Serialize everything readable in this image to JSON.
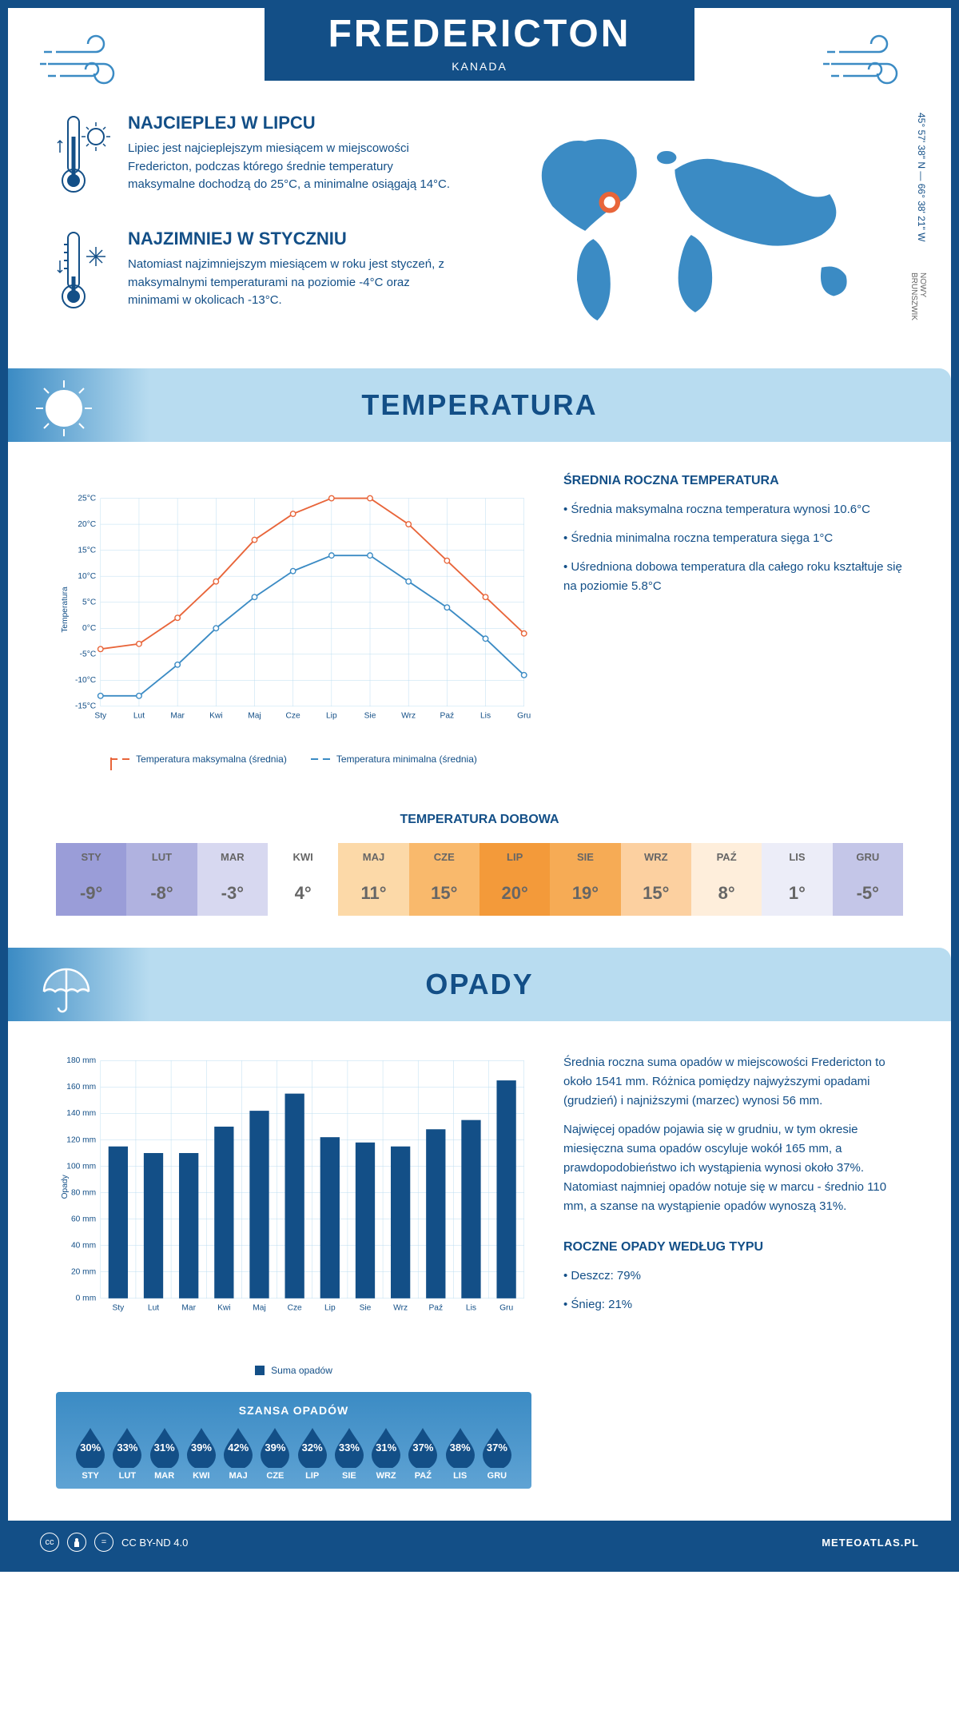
{
  "header": {
    "city": "FREDERICTON",
    "country": "KANADA",
    "coordinates": "45° 57' 38\" N — 66° 38' 21\" W",
    "region": "NOWY BRUNSZWIK"
  },
  "facts": {
    "hot": {
      "title": "NAJCIEPLEJ W LIPCU",
      "text": "Lipiec jest najcieplejszym miesiącem w miejscowości Fredericton, podczas którego średnie temperatury maksymalne dochodzą do 25°C, a minimalne osiągają 14°C."
    },
    "cold": {
      "title": "NAJZIMNIEJ W STYCZNIU",
      "text": "Natomiast najzimniejszym miesiącem w roku jest styczeń, z maksymalnymi temperaturami na poziomie -4°C oraz minimami w okolicach -13°C."
    }
  },
  "temperature": {
    "section_title": "TEMPERATURA",
    "chart": {
      "type": "line",
      "months": [
        "Sty",
        "Lut",
        "Mar",
        "Kwi",
        "Maj",
        "Cze",
        "Lip",
        "Sie",
        "Wrz",
        "Paź",
        "Lis",
        "Gru"
      ],
      "max_series": {
        "label": "Temperatura maksymalna (średnia)",
        "color": "#e8653a",
        "values": [
          -4,
          -3,
          2,
          9,
          17,
          22,
          25,
          25,
          20,
          13,
          6,
          -1
        ]
      },
      "min_series": {
        "label": "Temperatura minimalna (średnia)",
        "color": "#3b8bc4",
        "values": [
          -13,
          -13,
          -7,
          0,
          6,
          11,
          14,
          14,
          9,
          4,
          -2,
          -9
        ]
      },
      "ylabel": "Temperatura",
      "ylim": [
        -15,
        25
      ],
      "ytick_step": 5,
      "ytick_labels": [
        "-15°C",
        "-10°C",
        "-5°C",
        "0°C",
        "5°C",
        "10°C",
        "15°C",
        "20°C",
        "25°C"
      ],
      "grid_color": "#b8dcf0",
      "background": "#ffffff"
    },
    "stats": {
      "heading": "ŚREDNIA ROCZNA TEMPERATURA",
      "bullet1": "Średnia maksymalna roczna temperatura wynosi 10.6°C",
      "bullet2": "Średnia minimalna roczna temperatura sięga 1°C",
      "bullet3": "Uśredniona dobowa temperatura dla całego roku kształtuje się na poziomie 5.8°C"
    },
    "daily": {
      "title": "TEMPERATURA DOBOWA",
      "months": [
        "STY",
        "LUT",
        "MAR",
        "KWI",
        "MAJ",
        "CZE",
        "LIP",
        "SIE",
        "WRZ",
        "PAŹ",
        "LIS",
        "GRU"
      ],
      "values": [
        "-9°",
        "-8°",
        "-3°",
        "4°",
        "11°",
        "15°",
        "20°",
        "19°",
        "15°",
        "8°",
        "1°",
        "-5°"
      ],
      "cell_colors": [
        "#9a9dd8",
        "#b0b2e0",
        "#d7d8f0",
        "#ffffff",
        "#fcd9a8",
        "#f9b96c",
        "#f39a3a",
        "#f6ab55",
        "#fcd0a0",
        "#feeedb",
        "#ecedf8",
        "#c4c6e8"
      ],
      "text_color": "#666666"
    }
  },
  "precipitation": {
    "section_title": "OPADY",
    "chart": {
      "type": "bar",
      "months": [
        "Sty",
        "Lut",
        "Mar",
        "Kwi",
        "Maj",
        "Cze",
        "Lip",
        "Sie",
        "Wrz",
        "Paź",
        "Lis",
        "Gru"
      ],
      "values": [
        115,
        110,
        110,
        130,
        142,
        155,
        122,
        118,
        115,
        128,
        135,
        165
      ],
      "bar_color": "#134f87",
      "ylabel": "Opady",
      "ylim": [
        0,
        180
      ],
      "ytick_step": 20,
      "ytick_labels": [
        "0 mm",
        "20 mm",
        "40 mm",
        "60 mm",
        "80 mm",
        "100 mm",
        "120 mm",
        "140 mm",
        "160 mm",
        "180 mm"
      ],
      "legend_label": "Suma opadów",
      "grid_color": "#b8dcf0"
    },
    "text": {
      "p1": "Średnia roczna suma opadów w miejscowości Fredericton to około 1541 mm. Różnica pomiędzy najwyższymi opadami (grudzień) i najniższymi (marzec) wynosi 56 mm.",
      "p2": "Najwięcej opadów pojawia się w grudniu, w tym okresie miesięczna suma opadów oscyluje wokół 165 mm, a prawdopodobieństwo ich wystąpienia wynosi około 37%. Natomiast najmniej opadów notuje się w marcu - średnio 110 mm, a szanse na wystąpienie opadów wynoszą 31%.",
      "type_heading": "ROCZNE OPADY WEDŁUG TYPU",
      "rain": "Deszcz: 79%",
      "snow": "Śnieg: 21%"
    },
    "chance": {
      "title": "SZANSA OPADÓW",
      "months": [
        "STY",
        "LUT",
        "MAR",
        "KWI",
        "MAJ",
        "CZE",
        "LIP",
        "SIE",
        "WRZ",
        "PAŹ",
        "LIS",
        "GRU"
      ],
      "values": [
        "30%",
        "33%",
        "31%",
        "39%",
        "42%",
        "39%",
        "32%",
        "33%",
        "31%",
        "37%",
        "38%",
        "37%"
      ],
      "drop_color": "#134f87",
      "panel_bg": "#3b8bc4"
    }
  },
  "footer": {
    "license": "CC BY-ND 4.0",
    "site": "METEOATLAS.PL"
  },
  "colors": {
    "primary": "#134f87",
    "light_blue": "#b8dcf0",
    "mid_blue": "#3b8bc4",
    "orange": "#e8653a"
  }
}
